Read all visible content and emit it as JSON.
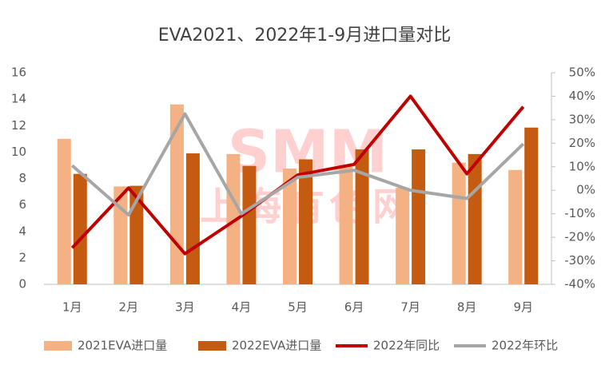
{
  "chart_data": {
    "type": "bar_line",
    "title": "EVA2021、2022年1-9月进口量对比",
    "categories": [
      "1月",
      "2月",
      "3月",
      "4月",
      "5月",
      "6月",
      "7月",
      "8月",
      "9月"
    ],
    "series": [
      {
        "name": "2021EVA进口量",
        "type": "bar",
        "color": "#f4b183",
        "values": [
          11.0,
          7.4,
          13.6,
          9.85,
          8.75,
          9.0,
          7.3,
          9.2,
          8.65
        ]
      },
      {
        "name": "2022EVA进口量",
        "type": "bar",
        "color": "#c55a11",
        "values": [
          8.35,
          7.45,
          9.9,
          8.95,
          9.45,
          10.2,
          10.2,
          9.85,
          11.85
        ]
      },
      {
        "name": "2022年同比",
        "type": "line",
        "axis": "y2",
        "color": "#c00000",
        "values": [
          -24.5,
          1,
          -27,
          -11,
          6.5,
          11,
          40,
          7,
          35.5
        ]
      },
      {
        "name": "2022年环比",
        "type": "line",
        "axis": "y2",
        "color": "#a6a6a6",
        "values": [
          10.5,
          -10.5,
          32.5,
          -10,
          5.5,
          8.5,
          0,
          -3.5,
          19.7
        ]
      }
    ],
    "ylim": [
      0,
      16
    ],
    "yticks": [
      0,
      2,
      4,
      6,
      8,
      10,
      12,
      14,
      16
    ],
    "y2lim": [
      -40,
      50
    ],
    "y2ticks": [
      {
        "value": -40,
        "label": "-40%"
      },
      {
        "value": -30,
        "label": "-30%"
      },
      {
        "value": -20,
        "label": "-20%"
      },
      {
        "value": -10,
        "label": "-10%"
      },
      {
        "value": 0,
        "label": "0%"
      },
      {
        "value": 10,
        "label": "10%"
      },
      {
        "value": 20,
        "label": "20%"
      },
      {
        "value": 30,
        "label": "30%"
      },
      {
        "value": 40,
        "label": "40%"
      },
      {
        "value": 50,
        "label": "50%"
      }
    ],
    "watermark": [
      "SMM",
      "上海有色网"
    ],
    "grid": false,
    "legend": "bottom"
  }
}
